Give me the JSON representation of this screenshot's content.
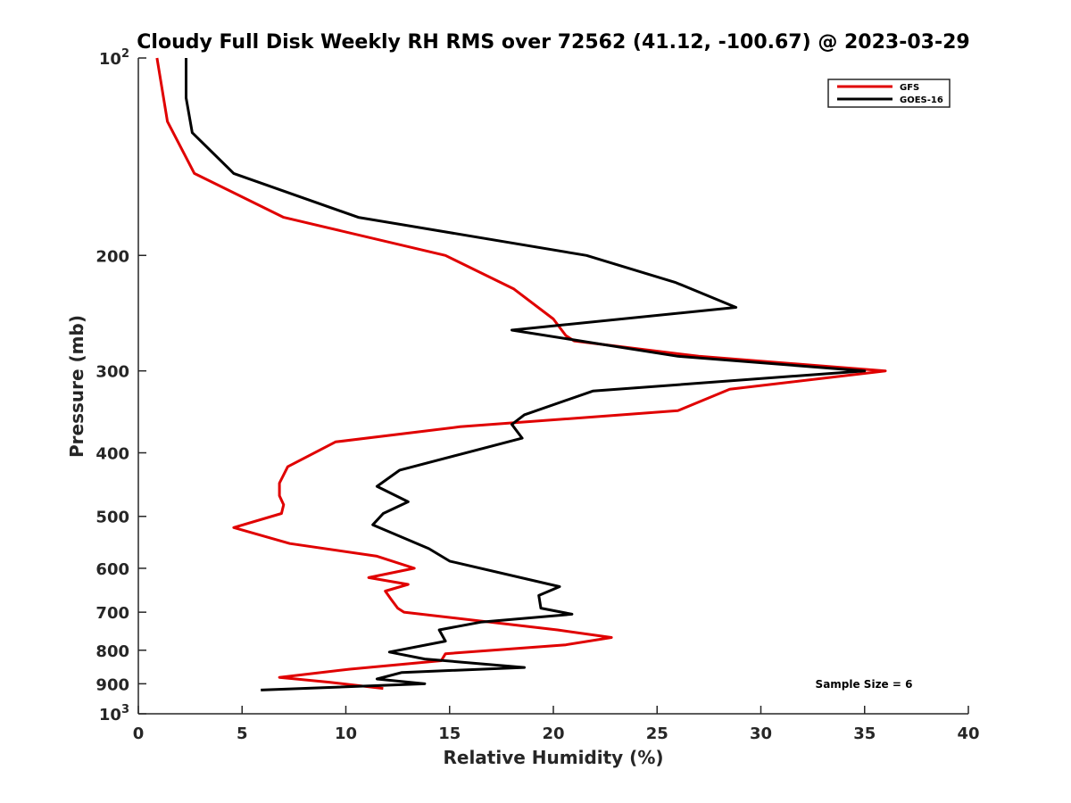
{
  "chart_data": {
    "type": "line",
    "title": "Cloudy Full Disk Weekly RH RMS over 72562 (41.12, -100.67) @ 2023-03-29",
    "xlabel": "Relative Humidity (%)",
    "ylabel": "Pressure (mb)",
    "xlim": [
      0,
      40
    ],
    "ylim": [
      100,
      1000
    ],
    "y_scale": "log",
    "y_reversed": true,
    "x_ticks": [
      0,
      5,
      10,
      15,
      20,
      25,
      30,
      35,
      40
    ],
    "x_tick_labels": [
      "0",
      "5",
      "10",
      "15",
      "20",
      "25",
      "30",
      "35",
      "40"
    ],
    "y_ticks": [
      200,
      300,
      400,
      500,
      600,
      700,
      800,
      900
    ],
    "y_tick_labels": [
      "200",
      "300",
      "400",
      "500",
      "600",
      "700",
      "800",
      "900"
    ],
    "y_tick_top": {
      "base": "10",
      "exp": "2"
    },
    "y_tick_bottom": {
      "base": "10",
      "exp": "3"
    },
    "grid": false,
    "legend_position": "top-right",
    "annotation": "Sample Size = 6",
    "series": [
      {
        "name": "GFS",
        "color": "#e00000",
        "points": [
          [
            0.9,
            100
          ],
          [
            1.4,
            125
          ],
          [
            2.7,
            150
          ],
          [
            7.0,
            175
          ],
          [
            14.8,
            200
          ],
          [
            18.1,
            225
          ],
          [
            20.0,
            250
          ],
          [
            20.6,
            265
          ],
          [
            21.0,
            270
          ],
          [
            27.0,
            285
          ],
          [
            36.0,
            300
          ],
          [
            28.5,
            320
          ],
          [
            26.0,
            345
          ],
          [
            15.5,
            365
          ],
          [
            9.5,
            385
          ],
          [
            7.2,
            420
          ],
          [
            6.8,
            445
          ],
          [
            6.8,
            465
          ],
          [
            7.0,
            480
          ],
          [
            6.9,
            495
          ],
          [
            4.6,
            520
          ],
          [
            7.3,
            550
          ],
          [
            11.5,
            575
          ],
          [
            13.3,
            600
          ],
          [
            11.1,
            620
          ],
          [
            13.0,
            635
          ],
          [
            11.9,
            650
          ],
          [
            12.2,
            670
          ],
          [
            12.5,
            690
          ],
          [
            12.8,
            700
          ],
          [
            20.2,
            745
          ],
          [
            22.8,
            765
          ],
          [
            20.6,
            785
          ],
          [
            14.8,
            810
          ],
          [
            14.6,
            830
          ],
          [
            10.2,
            855
          ],
          [
            6.8,
            880
          ],
          [
            9.2,
            895
          ],
          [
            11.8,
            915
          ]
        ]
      },
      {
        "name": "GOES-16",
        "color": "#000000",
        "points": [
          [
            2.3,
            100
          ],
          [
            2.3,
            115
          ],
          [
            2.6,
            130
          ],
          [
            4.6,
            150
          ],
          [
            10.6,
            175
          ],
          [
            21.6,
            200
          ],
          [
            25.9,
            220
          ],
          [
            28.8,
            240
          ],
          [
            18.0,
            260
          ],
          [
            26.0,
            285
          ],
          [
            35.0,
            300
          ],
          [
            21.9,
            322
          ],
          [
            18.6,
            350
          ],
          [
            18.0,
            362
          ],
          [
            18.5,
            380
          ],
          [
            12.6,
            425
          ],
          [
            11.5,
            450
          ],
          [
            13.0,
            475
          ],
          [
            11.8,
            495
          ],
          [
            11.3,
            515
          ],
          [
            14.0,
            560
          ],
          [
            15.0,
            585
          ],
          [
            20.3,
            640
          ],
          [
            19.3,
            660
          ],
          [
            19.4,
            690
          ],
          [
            20.9,
            705
          ],
          [
            16.5,
            725
          ],
          [
            14.5,
            745
          ],
          [
            14.8,
            775
          ],
          [
            12.1,
            805
          ],
          [
            13.8,
            825
          ],
          [
            18.6,
            850
          ],
          [
            12.7,
            865
          ],
          [
            11.5,
            885
          ],
          [
            13.8,
            900
          ],
          [
            5.9,
            920
          ]
        ]
      }
    ]
  }
}
